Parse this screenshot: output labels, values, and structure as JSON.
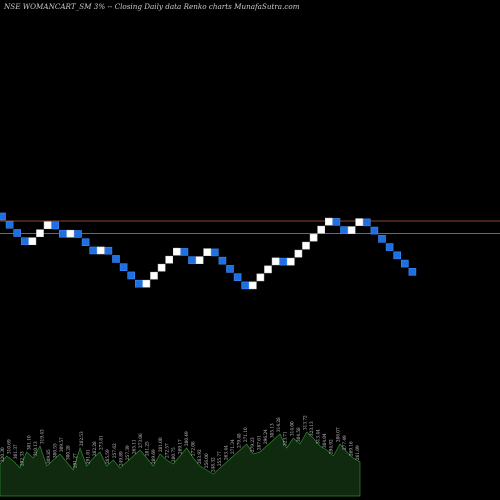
{
  "header": {
    "title": "NSE WOMANCART_SM 3% -- Closing Daily data Renko charts MunafaSutra.com"
  },
  "colors": {
    "background": "#000000",
    "brick_up": "#ffffff",
    "brick_down": "#1e6fe0",
    "reference_line": "#c0603a",
    "volume_fill": "#0f2a0f",
    "volume_outline": "#2e8b2e",
    "label": "#cccccc"
  },
  "chart_data": {
    "type": "renko",
    "brick_size_pct": 3,
    "reference_lines": [
      320.3,
      305.75
    ],
    "bricks": [
      {
        "dir": "down",
        "close": 320.3
      },
      {
        "dir": "down",
        "close": 310.69
      },
      {
        "dir": "down",
        "close": 301.37
      },
      {
        "dir": "down",
        "close": 292.33
      },
      {
        "dir": "up",
        "close": 301.1
      },
      {
        "dir": "up",
        "close": 310.13
      },
      {
        "dir": "up",
        "close": 319.43
      },
      {
        "dir": "down",
        "close": 309.85
      },
      {
        "dir": "down",
        "close": 300.55
      },
      {
        "dir": "up",
        "close": 309.57
      },
      {
        "dir": "down",
        "close": 300.28
      },
      {
        "dir": "down",
        "close": 291.27
      },
      {
        "dir": "down",
        "close": 282.53
      },
      {
        "dir": "up",
        "close": 291.01
      },
      {
        "dir": "down",
        "close": 282.28
      },
      {
        "dir": "down",
        "close": 273.81
      },
      {
        "dir": "down",
        "close": 265.59
      },
      {
        "dir": "down",
        "close": 257.62
      },
      {
        "dir": "down",
        "close": 249.89
      },
      {
        "dir": "up",
        "close": 257.39
      },
      {
        "dir": "up",
        "close": 265.11
      },
      {
        "dir": "up",
        "close": 273.06
      },
      {
        "dir": "up",
        "close": 281.25
      },
      {
        "dir": "up",
        "close": 289.69
      },
      {
        "dir": "down",
        "close": 281
      },
      {
        "dir": "down",
        "close": 272.57
      },
      {
        "dir": "up",
        "close": 280.75
      },
      {
        "dir": "up",
        "close": 289.17
      },
      {
        "dir": "down",
        "close": 280.49
      },
      {
        "dir": "down",
        "close": 272.08
      },
      {
        "dir": "down",
        "close": 263.92
      },
      {
        "dir": "down",
        "close": 256
      },
      {
        "dir": "down",
        "close": 248.32
      },
      {
        "dir": "up",
        "close": 255.77
      },
      {
        "dir": "up",
        "close": 263.44
      },
      {
        "dir": "up",
        "close": 271.34
      },
      {
        "dir": "up",
        "close": 279.48
      },
      {
        "dir": "down",
        "close": 271.1
      },
      {
        "dir": "up",
        "close": 279.23
      },
      {
        "dir": "up",
        "close": 287.61
      },
      {
        "dir": "up",
        "close": 296.24
      },
      {
        "dir": "up",
        "close": 305.13
      },
      {
        "dir": "up",
        "close": 314.28
      },
      {
        "dir": "up",
        "close": 323.71
      },
      {
        "dir": "down",
        "close": 314
      },
      {
        "dir": "down",
        "close": 304.58
      },
      {
        "dir": "up",
        "close": 313.72
      },
      {
        "dir": "up",
        "close": 323.13
      },
      {
        "dir": "down",
        "close": 313.44
      },
      {
        "dir": "down",
        "close": 304.04
      },
      {
        "dir": "down",
        "close": 294.92
      },
      {
        "dir": "down",
        "close": 286.07
      },
      {
        "dir": "down",
        "close": 277.49
      },
      {
        "dir": "down",
        "close": 269.16
      },
      {
        "dir": "down",
        "close": 261.09
      }
    ],
    "volume_labels": [
      "320.30",
      "310.69",
      "301.37",
      "292.33",
      "301.10",
      "310.13",
      "319.43",
      "309.85",
      "300.55",
      "309.57",
      "300.28",
      "291.27",
      "282.53",
      "291.01",
      "282.28",
      "273.81",
      "265.59",
      "257.62",
      "249.89",
      "257.39",
      "265.11",
      "273.06",
      "281.25",
      "289.69",
      "281.00",
      "272.57",
      "280.75",
      "289.17",
      "280.49",
      "272.08",
      "263.92",
      "256.00",
      "248.32",
      "255.77",
      "263.44",
      "271.34",
      "279.48",
      "271.10",
      "279.23",
      "287.61",
      "296.24",
      "305.13",
      "314.28",
      "323.71",
      "314.00",
      "304.58",
      "313.72",
      "323.13",
      "313.44",
      "304.04",
      "294.92",
      "286.07",
      "277.49",
      "269.16",
      "261.09"
    ],
    "volume_values": [
      32,
      40,
      35,
      28,
      44,
      38,
      50,
      30,
      36,
      42,
      34,
      26,
      48,
      30,
      38,
      44,
      30,
      36,
      28,
      34,
      40,
      46,
      38,
      30,
      42,
      36,
      32,
      40,
      48,
      38,
      30,
      26,
      22,
      28,
      34,
      40,
      46,
      52,
      42,
      44,
      50,
      56,
      62,
      48,
      58,
      52,
      64,
      58,
      50,
      46,
      40,
      52,
      44,
      38,
      34
    ]
  }
}
